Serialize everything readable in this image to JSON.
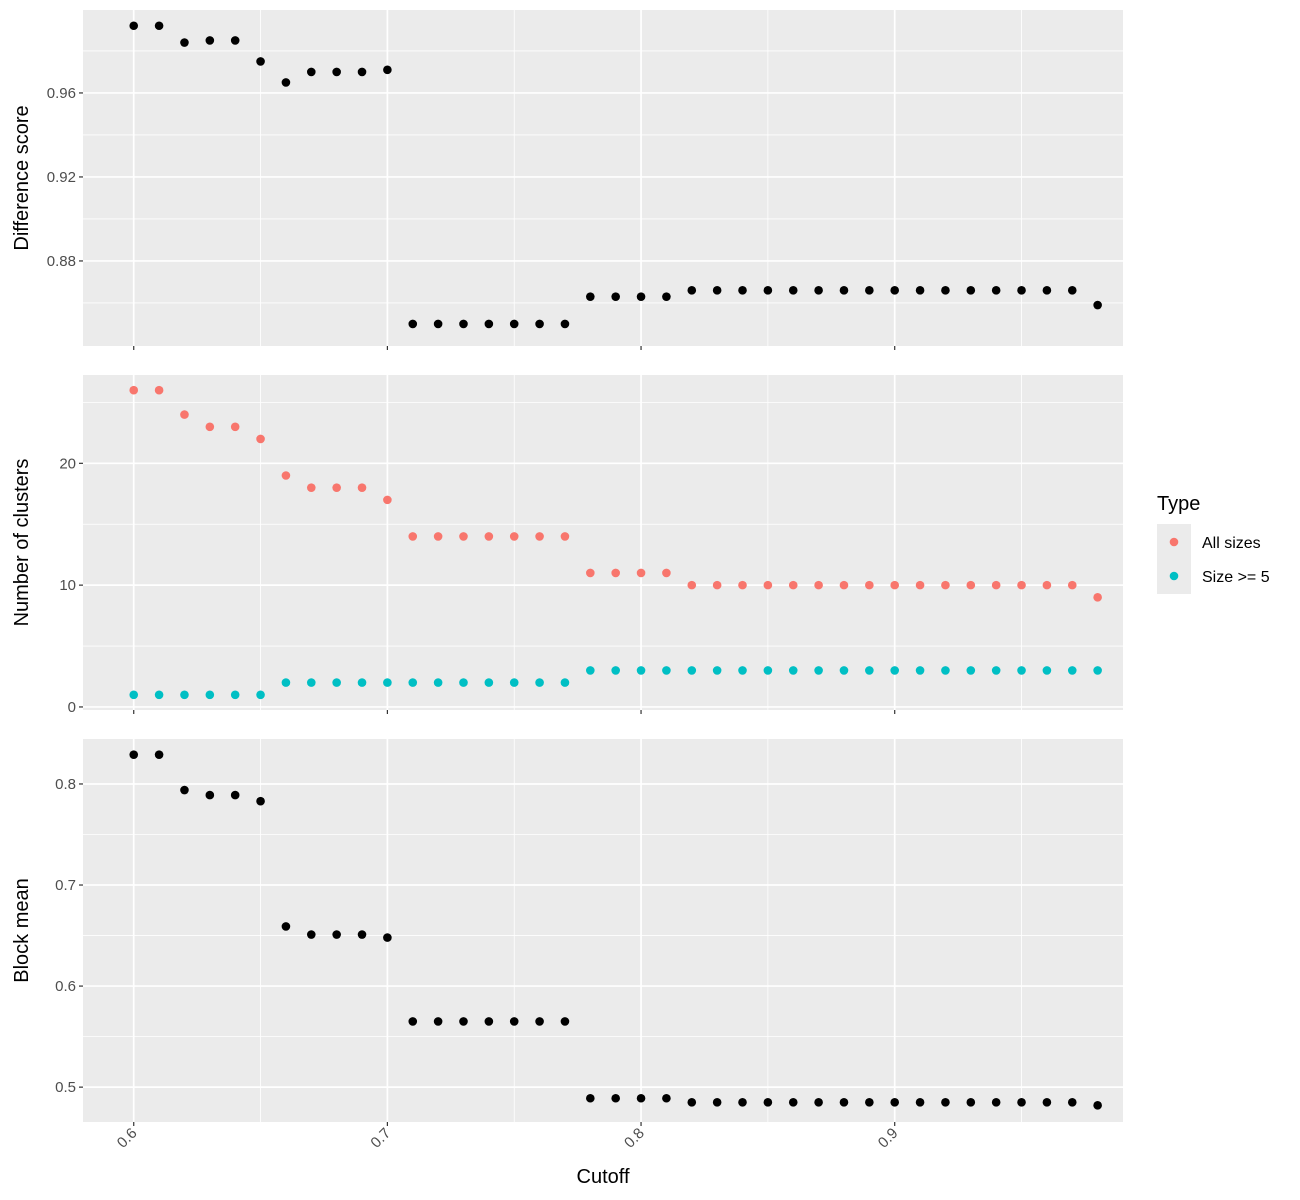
{
  "chart_data": {
    "type": "scatter",
    "xlabel": "Cutoff",
    "xlim": [
      0.58,
      0.99
    ],
    "x_ticks": [
      0.6,
      0.7,
      0.8,
      0.9
    ],
    "x_tick_labels": [
      "0.6",
      "0.7",
      "0.8",
      "0.9"
    ],
    "x": [
      0.6,
      0.61,
      0.62,
      0.63,
      0.64,
      0.65,
      0.66,
      0.67,
      0.68,
      0.69,
      0.7,
      0.71,
      0.72,
      0.73,
      0.74,
      0.75,
      0.76,
      0.77,
      0.78,
      0.79,
      0.8,
      0.81,
      0.82,
      0.83,
      0.84,
      0.85,
      0.86,
      0.87,
      0.88,
      0.89,
      0.9,
      0.91,
      0.92,
      0.93,
      0.94,
      0.95,
      0.96,
      0.97,
      0.98
    ],
    "grid": true,
    "legend": {
      "title": "Type",
      "placement": "right",
      "entries": [
        {
          "label": "All sizes",
          "color": "#F8766D"
        },
        {
          "label": "Size >= 5",
          "color": "#00BFC4"
        }
      ]
    },
    "panels": [
      {
        "ylabel": "Difference score",
        "ylim": [
          0.8395,
          0.9995
        ],
        "y_ticks": [
          0.88,
          0.92,
          0.96
        ],
        "y_tick_labels": [
          "0.88",
          "0.92",
          "0.96"
        ],
        "series": [
          {
            "color": "#000000",
            "values": [
              0.992,
              0.992,
              0.984,
              0.985,
              0.985,
              0.975,
              0.965,
              0.97,
              0.97,
              0.97,
              0.971,
              0.85,
              0.85,
              0.85,
              0.85,
              0.85,
              0.85,
              0.85,
              0.863,
              0.863,
              0.863,
              0.863,
              0.866,
              0.866,
              0.866,
              0.866,
              0.866,
              0.866,
              0.866,
              0.866,
              0.866,
              0.866,
              0.866,
              0.866,
              0.866,
              0.866,
              0.866,
              0.866,
              0.859
            ]
          }
        ]
      },
      {
        "ylabel": "Number of clusters",
        "ylim": [
          -0.25,
          27.25
        ],
        "y_ticks": [
          0,
          10,
          20
        ],
        "y_tick_labels": [
          "0",
          "10",
          "20"
        ],
        "series": [
          {
            "name": "All sizes",
            "color": "#F8766D",
            "values": [
              26,
              26,
              24,
              23,
              23,
              22,
              19,
              18,
              18,
              18,
              17,
              14,
              14,
              14,
              14,
              14,
              14,
              14,
              11,
              11,
              11,
              11,
              10,
              10,
              10,
              10,
              10,
              10,
              10,
              10,
              10,
              10,
              10,
              10,
              10,
              10,
              10,
              10,
              9
            ]
          },
          {
            "name": "Size >= 5",
            "color": "#00BFC4",
            "values": [
              1,
              1,
              1,
              1,
              1,
              1,
              2,
              2,
              2,
              2,
              2,
              2,
              2,
              2,
              2,
              2,
              2,
              2,
              3,
              3,
              3,
              3,
              3,
              3,
              3,
              3,
              3,
              3,
              3,
              3,
              3,
              3,
              3,
              3,
              3,
              3,
              3,
              3,
              3
            ]
          }
        ]
      },
      {
        "ylabel": "Block mean",
        "ylim": [
          0.4655,
          0.8445
        ],
        "y_ticks": [
          0.5,
          0.6,
          0.7,
          0.8
        ],
        "y_tick_labels": [
          "0.5",
          "0.6",
          "0.7",
          "0.8"
        ],
        "series": [
          {
            "color": "#000000",
            "values": [
              0.829,
              0.829,
              0.794,
              0.789,
              0.789,
              0.783,
              0.659,
              0.651,
              0.651,
              0.651,
              0.648,
              0.565,
              0.565,
              0.565,
              0.565,
              0.565,
              0.565,
              0.565,
              0.489,
              0.489,
              0.489,
              0.489,
              0.485,
              0.485,
              0.485,
              0.485,
              0.485,
              0.485,
              0.485,
              0.485,
              0.485,
              0.485,
              0.485,
              0.485,
              0.485,
              0.485,
              0.485,
              0.485,
              0.482
            ]
          }
        ]
      }
    ]
  }
}
